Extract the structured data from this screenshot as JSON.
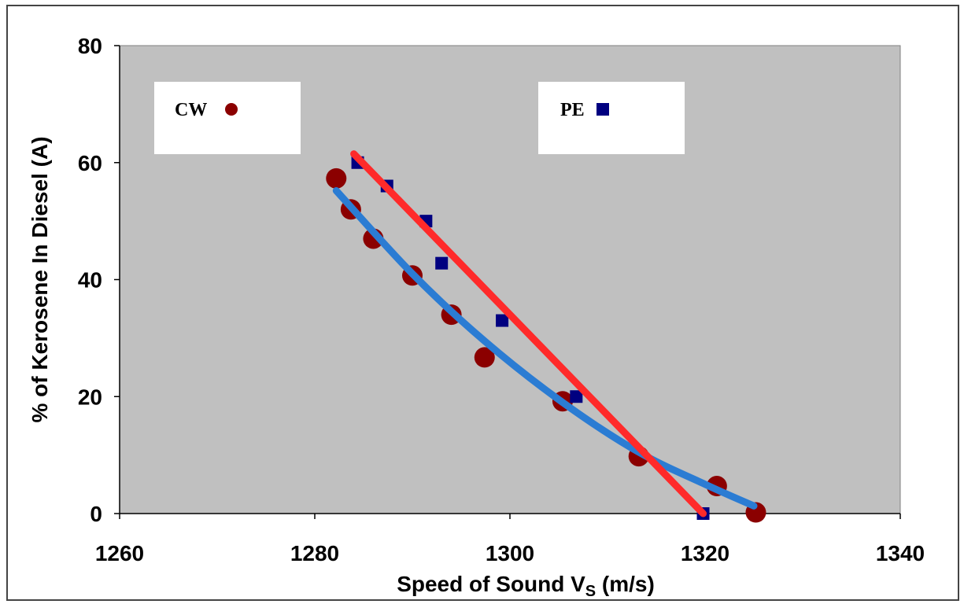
{
  "chart_data": {
    "type": "scatter",
    "title": "",
    "xlabel": "Speed of Sound  V",
    "xlabel_subscript": "S",
    "xlabel_suffix": " (m/s)",
    "ylabel": "% of Kerosene In Diesel (A)",
    "xlim": [
      1260,
      1340
    ],
    "ylim": [
      0,
      80
    ],
    "xticks": [
      1260,
      1280,
      1300,
      1320,
      1340
    ],
    "yticks": [
      0,
      20,
      40,
      60,
      80
    ],
    "grid": false,
    "plot_background": "#c0c0c0",
    "series": [
      {
        "name": "CW",
        "marker": "circle",
        "color": "#8b0000",
        "points": [
          [
            1282.2,
            57.3
          ],
          [
            1283.7,
            52.0
          ],
          [
            1286.0,
            47.0
          ],
          [
            1290.0,
            40.7
          ],
          [
            1294.0,
            34.0
          ],
          [
            1297.4,
            26.7
          ],
          [
            1305.4,
            19.2
          ],
          [
            1313.2,
            9.8
          ],
          [
            1321.2,
            4.7
          ],
          [
            1325.2,
            0.2
          ]
        ],
        "trendline": {
          "color": "#2b7cd3",
          "x": [
            1282.2,
            1325.0
          ],
          "y_at_x": [
            [
              1282.2,
              55.2
            ],
            [
              1290,
              41.0
            ],
            [
              1297.4,
              29.5
            ],
            [
              1305.4,
              19.0
            ],
            [
              1313.2,
              10.5
            ],
            [
              1320,
              5.0
            ],
            [
              1325.0,
              1.3
            ]
          ]
        }
      },
      {
        "name": "PE",
        "marker": "square",
        "color": "#000080",
        "points": [
          [
            1284.4,
            60.0
          ],
          [
            1287.4,
            56.0
          ],
          [
            1291.4,
            50.0
          ],
          [
            1293.0,
            42.8
          ],
          [
            1299.2,
            33.0
          ],
          [
            1306.8,
            20.0
          ],
          [
            1319.8,
            0.0
          ]
        ],
        "trendline": {
          "color": "#ff2a2a",
          "x": [
            1284.0,
            1319.8
          ],
          "y_at_x": [
            [
              1284.0,
              61.5
            ],
            [
              1319.8,
              0.0
            ]
          ]
        }
      }
    ],
    "legend_boxes": [
      {
        "label": "CW",
        "marker": "circle",
        "color": "#8b0000"
      },
      {
        "label": "PE",
        "marker": "square",
        "color": "#000080"
      }
    ]
  }
}
